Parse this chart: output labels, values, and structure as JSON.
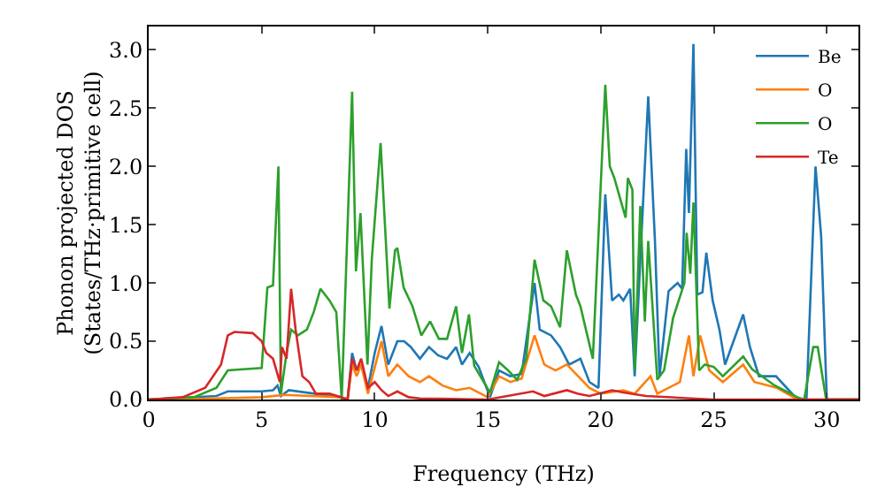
{
  "chart_data": {
    "type": "line",
    "xlabel": "Frequency (THz)",
    "ylabel": "Phonon projected DOS\n(States/THz·primitive cell)",
    "xlim": [
      0,
      31.4
    ],
    "ylim": [
      0,
      3.2
    ],
    "xticks": [
      0,
      5,
      10,
      15,
      20,
      25,
      30
    ],
    "yticks": [
      {
        "value": 0,
        "label": "0.0"
      },
      {
        "value": 0.5,
        "label": "0.5"
      },
      {
        "value": 1,
        "label": "1.0"
      },
      {
        "value": 1.5,
        "label": "1.5"
      },
      {
        "value": 2,
        "label": "2.0"
      },
      {
        "value": 2.5,
        "label": "2.5"
      },
      {
        "value": 3,
        "label": "3.0"
      }
    ],
    "grid": false,
    "legend": "top right",
    "line_style": "solid",
    "marker": "none",
    "series": [
      {
        "name": "Be",
        "color": "#1f77b4",
        "x": [
          0,
          3,
          3.5,
          5,
          5.5,
          5.7,
          5.85,
          6.2,
          8.5,
          8.8,
          9.0,
          9.2,
          9.4,
          9.7,
          10.0,
          10.3,
          10.6,
          11.0,
          11.3,
          11.6,
          12.0,
          12.4,
          12.8,
          13.2,
          13.6,
          13.86,
          14.2,
          14.6,
          15.1,
          15.5,
          16.0,
          16.5,
          17.07,
          17.3,
          17.8,
          18.2,
          18.6,
          19.1,
          19.5,
          19.9,
          20.2,
          20.5,
          20.8,
          21.0,
          21.3,
          21.5,
          22.1,
          22.4,
          22.6,
          23.0,
          23.4,
          23.6,
          23.78,
          23.9,
          24.1,
          24.27,
          24.5,
          24.67,
          24.95,
          25.25,
          25.5,
          26.3,
          26.6,
          27.0,
          27.75,
          28.7,
          29.1,
          29.5,
          29.75,
          30.0,
          31.4
        ],
        "values": [
          0,
          0.03,
          0.07,
          0.07,
          0.08,
          0.12,
          0.03,
          0.08,
          0.02,
          0,
          0.4,
          0.25,
          0.3,
          0.1,
          0.4,
          0.63,
          0.3,
          0.5,
          0.5,
          0.45,
          0.35,
          0.45,
          0.38,
          0.35,
          0.45,
          0.3,
          0.4,
          0.28,
          0.02,
          0.25,
          0.2,
          0.22,
          1.0,
          0.6,
          0.55,
          0.45,
          0.3,
          0.35,
          0.15,
          0.1,
          1.76,
          0.85,
          0.9,
          0.85,
          0.95,
          0.2,
          2.6,
          1.35,
          0.2,
          0.93,
          1.0,
          0.95,
          2.15,
          1.6,
          3.05,
          0.9,
          0.92,
          1.26,
          0.85,
          0.6,
          0.3,
          0.73,
          0.45,
          0.2,
          0.2,
          0,
          0,
          2.0,
          1.4,
          0,
          0
        ]
      },
      {
        "name": "O",
        "color": "#ff7f0e",
        "x": [
          0,
          3,
          5,
          6,
          8.5,
          8.8,
          9.0,
          9.2,
          9.4,
          9.7,
          10.3,
          10.6,
          11.0,
          11.5,
          12,
          12.4,
          13,
          13.6,
          14.2,
          15,
          15.5,
          16.0,
          16.5,
          17.07,
          17.5,
          18,
          18.5,
          19,
          19.5,
          20,
          21,
          21.5,
          22.2,
          22.5,
          23.5,
          23.9,
          24.1,
          24.4,
          24.8,
          25.4,
          26.3,
          26.8,
          27.8,
          28.7,
          30,
          31.4
        ],
        "values": [
          0,
          0.01,
          0.02,
          0.04,
          0.02,
          0,
          0.3,
          0.2,
          0.3,
          0.05,
          0.5,
          0.2,
          0.3,
          0.2,
          0.15,
          0.2,
          0.12,
          0.08,
          0.1,
          0.02,
          0.2,
          0.15,
          0.18,
          0.55,
          0.3,
          0.25,
          0.3,
          0.2,
          0.1,
          0.05,
          0.08,
          0.05,
          0.2,
          0.05,
          0.15,
          0.55,
          0.2,
          0.55,
          0.25,
          0.15,
          0.3,
          0.15,
          0.1,
          0,
          0,
          0
        ]
      },
      {
        "name": "O",
        "color": "#2ca02c",
        "x": [
          0,
          2,
          3,
          3.5,
          5,
          5.25,
          5.5,
          5.74,
          5.85,
          6.1,
          6.3,
          6.6,
          7.0,
          7.3,
          7.6,
          8.0,
          8.3,
          8.54,
          9.0,
          9.17,
          9.37,
          9.68,
          9.87,
          10.26,
          10.65,
          10.9,
          11.0,
          11.28,
          11.67,
          12.06,
          12.45,
          12.84,
          13.2,
          13.6,
          13.86,
          14.17,
          14.4,
          15.1,
          15.5,
          15.9,
          16.3,
          16.7,
          17.07,
          17.46,
          17.8,
          18.2,
          18.5,
          18.9,
          19.1,
          19.65,
          20.2,
          20.4,
          20.6,
          21.1,
          21.2,
          21.4,
          21.5,
          21.75,
          21.95,
          22.1,
          22.5,
          22.8,
          23.2,
          23.7,
          23.8,
          23.96,
          24.1,
          24.35,
          24.6,
          25.0,
          25.4,
          26.3,
          26.7,
          27.7,
          28.7,
          29.0,
          29.4,
          29.6,
          29.97,
          31.4
        ],
        "values": [
          0,
          0.02,
          0.1,
          0.25,
          0.27,
          0.96,
          0.98,
          2.0,
          0.05,
          0.4,
          0.6,
          0.55,
          0.6,
          0.75,
          0.95,
          0.85,
          0.75,
          0,
          2.64,
          1.1,
          1.6,
          0.3,
          1.2,
          2.2,
          0.78,
          1.28,
          1.3,
          0.96,
          0.8,
          0.55,
          0.67,
          0.52,
          0.52,
          0.8,
          0.4,
          0.73,
          0.29,
          0.06,
          0.32,
          0.25,
          0.17,
          0.35,
          1.2,
          0.85,
          0.8,
          0.62,
          1.28,
          0.9,
          0.8,
          0.35,
          2.7,
          2.0,
          1.9,
          1.56,
          1.9,
          1.8,
          0.25,
          1.66,
          0.67,
          1.36,
          0.17,
          0.25,
          0.7,
          1.0,
          1.43,
          1.08,
          1.69,
          0.25,
          0.3,
          0.28,
          0.2,
          0.37,
          0.26,
          0.12,
          0.02,
          0,
          0.45,
          0.45,
          0,
          0
        ]
      },
      {
        "name": "Te",
        "color": "#d62728",
        "x": [
          0,
          1.5,
          2.5,
          3.2,
          3.5,
          3.8,
          4.6,
          5.0,
          5.2,
          5.5,
          5.8,
          5.9,
          6.1,
          6.3,
          6.5,
          6.8,
          7.1,
          7.4,
          8.0,
          8.5,
          8.8,
          9.0,
          9.2,
          9.4,
          9.7,
          10.0,
          10.3,
          10.6,
          11,
          11.5,
          12,
          15,
          17,
          17.5,
          18.5,
          19,
          19.5,
          20.5,
          21,
          22,
          24,
          25,
          31.4
        ],
        "values": [
          0,
          0.02,
          0.1,
          0.3,
          0.55,
          0.58,
          0.57,
          0.5,
          0.4,
          0.35,
          0.15,
          0.45,
          0.35,
          0.95,
          0.6,
          0.2,
          0.15,
          0.05,
          0.05,
          0.02,
          0,
          0.35,
          0.25,
          0.35,
          0.1,
          0.15,
          0.08,
          0.03,
          0.07,
          0.02,
          0.01,
          0,
          0.07,
          0.03,
          0.08,
          0.05,
          0.03,
          0.08,
          0.06,
          0.03,
          0.01,
          0,
          0
        ]
      }
    ]
  }
}
